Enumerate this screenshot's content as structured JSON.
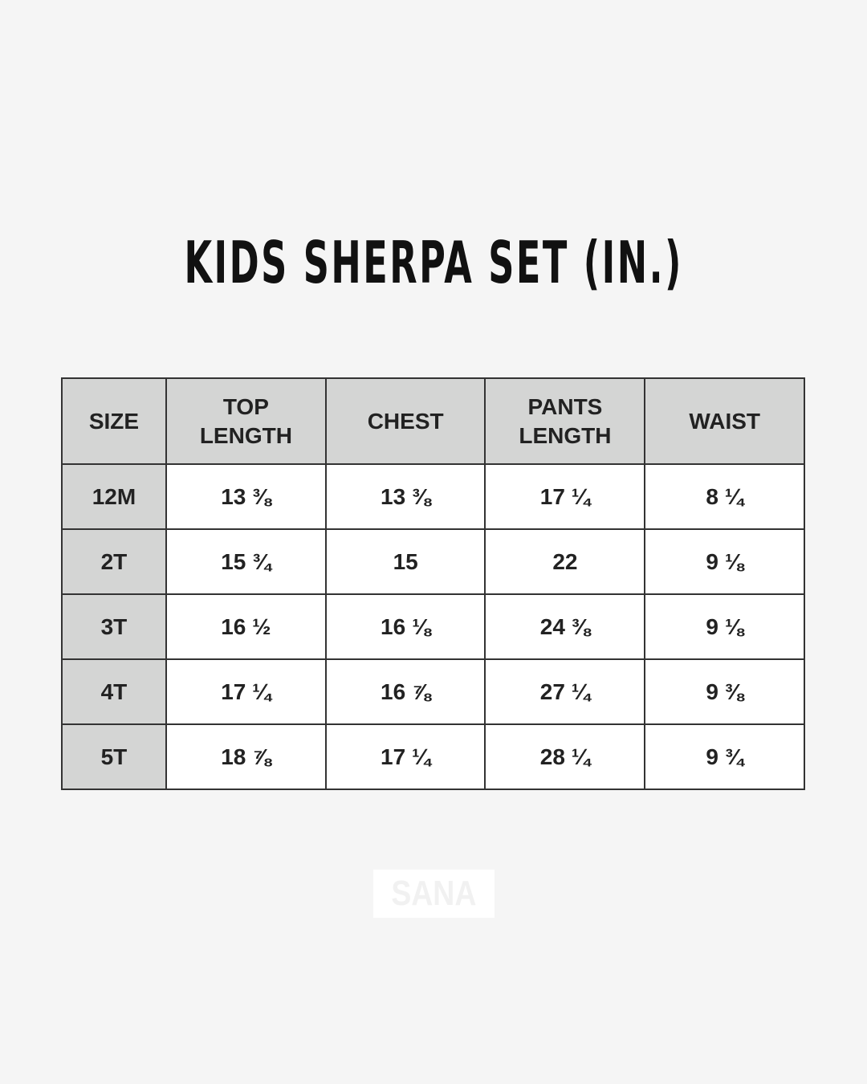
{
  "title": "KIDS SHERPA SET (IN.)",
  "table": {
    "headers": [
      "SIZE",
      "TOP LENGTH",
      "CHEST",
      "PANTS LENGTH",
      "WAIST"
    ],
    "rows": [
      [
        "12M",
        "13 ⅜",
        "13 ⅜",
        "17 ¼",
        "8 ¼"
      ],
      [
        "2T",
        "15 ¾",
        "15",
        "22",
        "9 ⅛"
      ],
      [
        "3T",
        "16 ½",
        "16 ⅛",
        "24 ⅜",
        "9 ⅛"
      ],
      [
        "4T",
        "17 ¼",
        "16 ⅞",
        "27 ¼",
        "9 ⅜"
      ],
      [
        "5T",
        "18 ⅞",
        "17 ¼",
        "28 ¼",
        "9 ¾"
      ]
    ]
  },
  "logo": "SANA",
  "colors": {
    "background": "#f5f5f5",
    "header_fill": "#d4d5d4",
    "border": "#333333"
  }
}
